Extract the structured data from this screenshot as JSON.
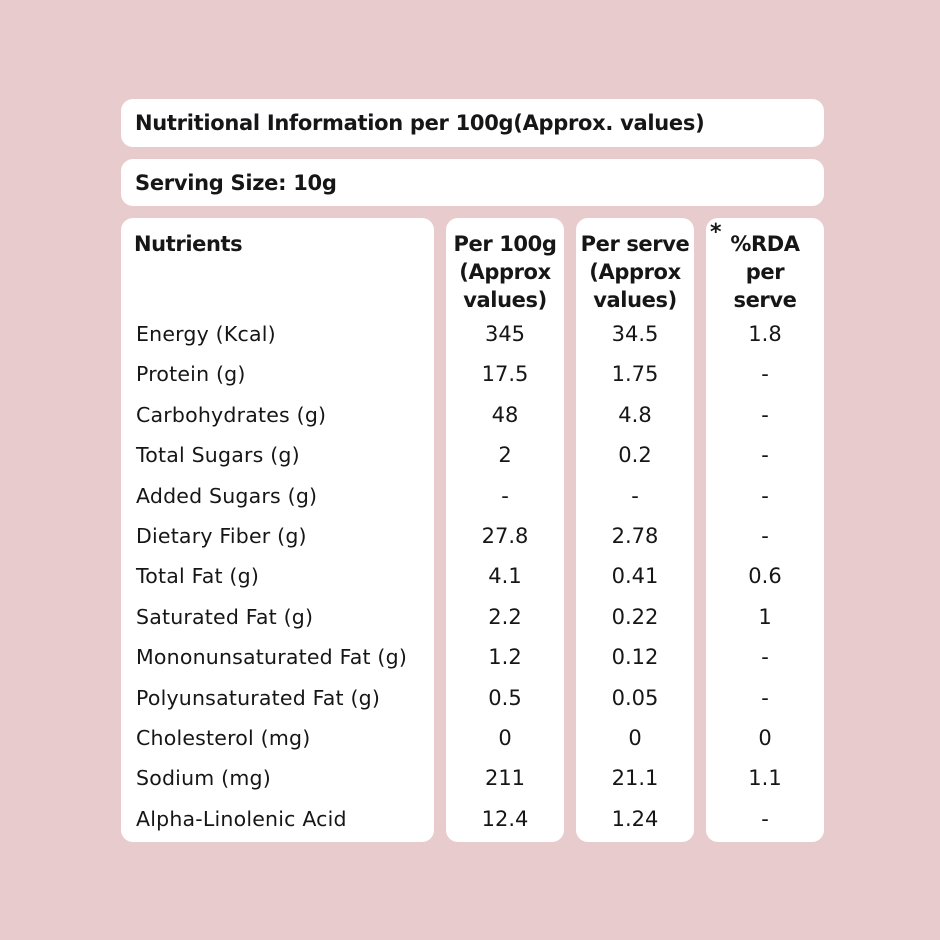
{
  "header": {
    "title": "Nutritional Information per 100g(Approx. values)",
    "serving_size": "Serving Size: 10g"
  },
  "table": {
    "columns": [
      {
        "key": "nutrient",
        "label": "Nutrients"
      },
      {
        "key": "per_100g",
        "label": "Per 100g\n(Approx\nvalues)"
      },
      {
        "key": "per_serve",
        "label": "Per serve\n(Approx\nvalues)"
      },
      {
        "key": "rda",
        "label": "%RDA\nper\nserve",
        "marker": "*"
      }
    ],
    "rows": [
      {
        "nutrient": "Energy (Kcal)",
        "per_100g": "345",
        "per_serve": "34.5",
        "rda": "1.8"
      },
      {
        "nutrient": "Protein (g)",
        "per_100g": "17.5",
        "per_serve": "1.75",
        "rda": "-"
      },
      {
        "nutrient": "Carbohydrates (g)",
        "per_100g": "48",
        "per_serve": "4.8",
        "rda": "-"
      },
      {
        "nutrient": "Total Sugars (g)",
        "per_100g": "2",
        "per_serve": "0.2",
        "rda": "-"
      },
      {
        "nutrient": "Added Sugars (g)",
        "per_100g": "-",
        "per_serve": "-",
        "rda": "-"
      },
      {
        "nutrient": "Dietary Fiber (g)",
        "per_100g": "27.8",
        "per_serve": "2.78",
        "rda": "-"
      },
      {
        "nutrient": "Total Fat (g)",
        "per_100g": "4.1",
        "per_serve": "0.41",
        "rda": "0.6"
      },
      {
        "nutrient": "Saturated Fat (g)",
        "per_100g": "2.2",
        "per_serve": "0.22",
        "rda": "1"
      },
      {
        "nutrient": "Mononunsaturated Fat (g)",
        "per_100g": "1.2",
        "per_serve": "0.12",
        "rda": "-"
      },
      {
        "nutrient": "Polyunsaturated Fat (g)",
        "per_100g": "0.5",
        "per_serve": "0.05",
        "rda": "-"
      },
      {
        "nutrient": "Cholesterol (mg)",
        "per_100g": "0",
        "per_serve": "0",
        "rda": "0"
      },
      {
        "nutrient": "Sodium (mg)",
        "per_100g": "211",
        "per_serve": "21.1",
        "rda": "1.1"
      },
      {
        "nutrient": "Alpha-Linolenic Acid",
        "per_100g": "12.4",
        "per_serve": "1.24",
        "rda": "-"
      }
    ]
  },
  "colors": {
    "background": "#e8cccd",
    "panel": "#ffffff",
    "text": "#161616"
  }
}
